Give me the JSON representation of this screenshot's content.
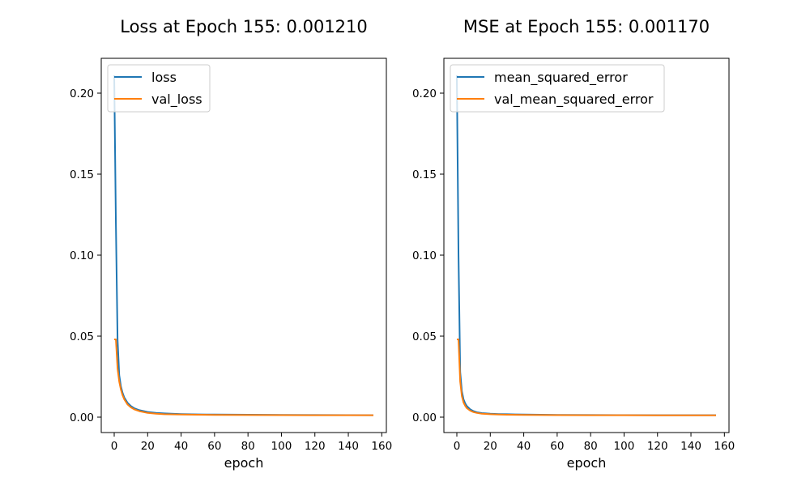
{
  "colors": {
    "series_1": "#1f77b4",
    "series_2": "#ff7f0e",
    "axes": "#000000",
    "legend_border": "#cccccc",
    "background": "#ffffff"
  },
  "chart_data": [
    {
      "type": "line",
      "title": "Loss at Epoch 155: 0.001210",
      "xlabel": "epoch",
      "ylabel": "",
      "xlim": [
        -7.75,
        162.75
      ],
      "ylim": [
        -0.0095,
        0.2215
      ],
      "xticks": [
        0,
        20,
        40,
        60,
        80,
        100,
        120,
        140,
        160
      ],
      "yticks": [
        0.0,
        0.05,
        0.1,
        0.15,
        0.2
      ],
      "ytick_labels": [
        "0.00",
        "0.05",
        "0.10",
        "0.15",
        "0.20"
      ],
      "grid": false,
      "legend_position": "upper-left",
      "series": [
        {
          "name": "loss",
          "x": [
            0,
            1,
            2,
            3,
            4,
            5,
            6,
            8,
            10,
            12,
            15,
            20,
            25,
            30,
            40,
            50,
            60,
            80,
            100,
            120,
            140,
            155
          ],
          "y": [
            0.211,
            0.12,
            0.048,
            0.026,
            0.019,
            0.015,
            0.0122,
            0.0088,
            0.0068,
            0.0055,
            0.0043,
            0.0032,
            0.0026,
            0.0023,
            0.0019,
            0.0017,
            0.0016,
            0.0015,
            0.0014,
            0.0013,
            0.00125,
            0.00121
          ]
        },
        {
          "name": "val_loss",
          "x": [
            0,
            1,
            2,
            3,
            4,
            5,
            6,
            8,
            10,
            12,
            15,
            20,
            25,
            30,
            40,
            50,
            60,
            80,
            100,
            120,
            140,
            155
          ],
          "y": [
            0.048,
            0.048,
            0.03,
            0.022,
            0.017,
            0.0135,
            0.011,
            0.0078,
            0.006,
            0.0048,
            0.0037,
            0.0026,
            0.0021,
            0.0018,
            0.0016,
            0.0015,
            0.0014,
            0.0013,
            0.00125,
            0.0012,
            0.00118,
            0.00117
          ]
        }
      ]
    },
    {
      "type": "line",
      "title": "MSE at Epoch 155: 0.001170",
      "xlabel": "epoch",
      "ylabel": "",
      "xlim": [
        -7.75,
        162.75
      ],
      "ylim": [
        -0.0095,
        0.2215
      ],
      "xticks": [
        0,
        20,
        40,
        60,
        80,
        100,
        120,
        140,
        160
      ],
      "yticks": [
        0.0,
        0.05,
        0.1,
        0.15,
        0.2
      ],
      "ytick_labels": [
        "0.00",
        "0.05",
        "0.10",
        "0.15",
        "0.20"
      ],
      "grid": false,
      "legend_position": "upper-left",
      "series": [
        {
          "name": "mean_squared_error",
          "x": [
            0,
            1,
            2,
            3,
            4,
            5,
            6,
            8,
            10,
            12,
            15,
            20,
            25,
            30,
            40,
            50,
            60,
            80,
            100,
            120,
            140,
            155
          ],
          "y": [
            0.211,
            0.1,
            0.028,
            0.016,
            0.011,
            0.0085,
            0.0068,
            0.0048,
            0.0037,
            0.003,
            0.0025,
            0.0021,
            0.0019,
            0.0018,
            0.0016,
            0.0015,
            0.0014,
            0.0013,
            0.00125,
            0.0012,
            0.00118,
            0.00117
          ]
        },
        {
          "name": "val_mean_squared_error",
          "x": [
            0,
            1,
            2,
            3,
            4,
            5,
            6,
            8,
            10,
            12,
            15,
            20,
            25,
            30,
            40,
            50,
            60,
            80,
            100,
            120,
            140,
            155
          ],
          "y": [
            0.048,
            0.048,
            0.022,
            0.013,
            0.009,
            0.007,
            0.0055,
            0.004,
            0.0031,
            0.0026,
            0.0021,
            0.0018,
            0.0016,
            0.0015,
            0.0014,
            0.0013,
            0.00125,
            0.0012,
            0.00116,
            0.00113,
            0.00111,
            0.0011
          ]
        }
      ]
    }
  ]
}
